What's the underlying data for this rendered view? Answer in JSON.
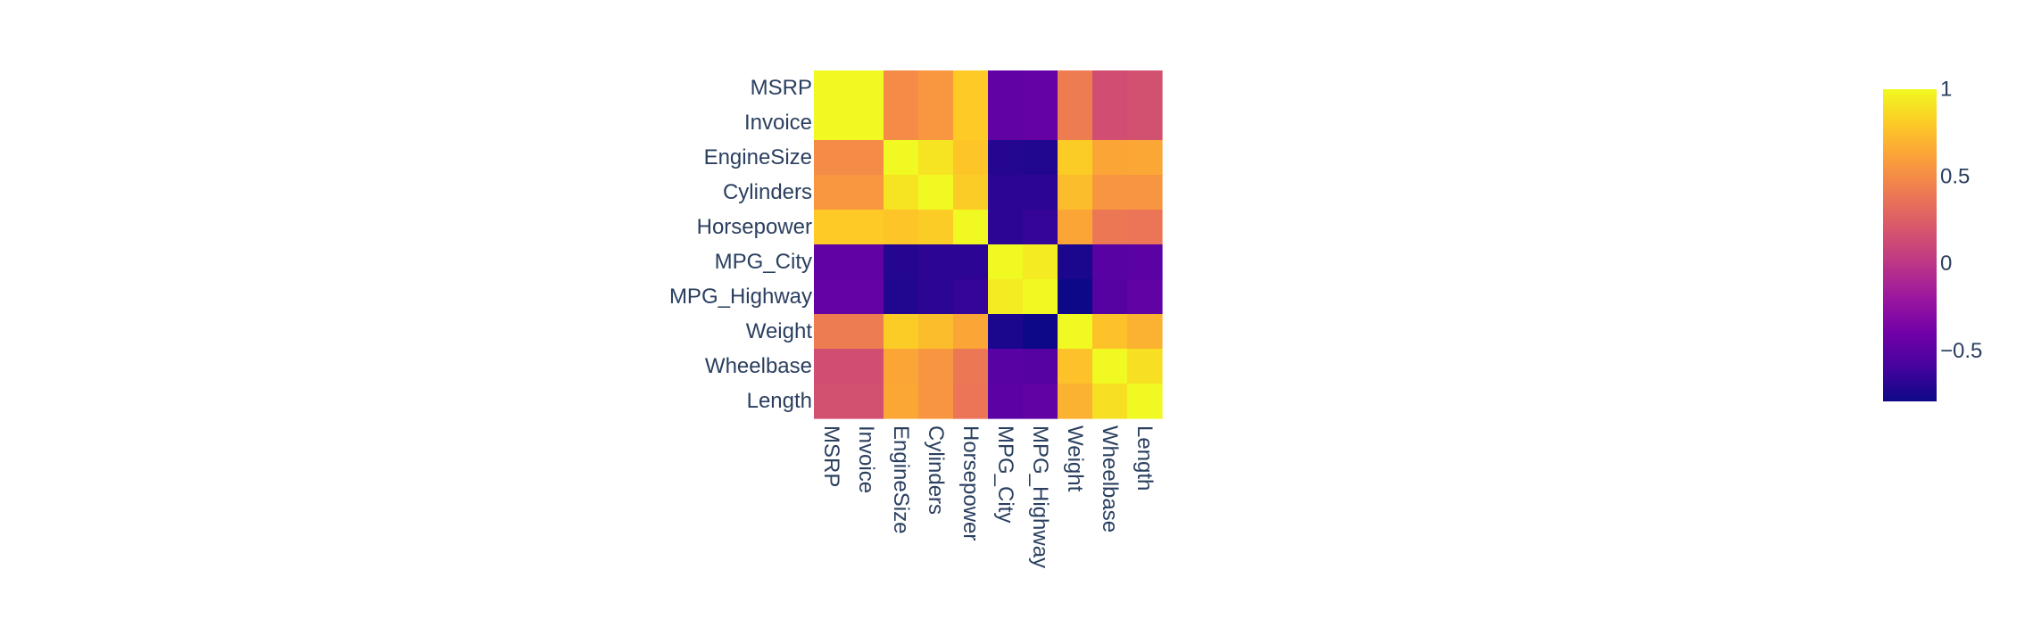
{
  "chart_data": {
    "type": "heatmap",
    "categories": [
      "MSRP",
      "Invoice",
      "EngineSize",
      "Cylinders",
      "Horsepower",
      "MPG_City",
      "MPG_Highway",
      "Weight",
      "Wheelbase",
      "Length"
    ],
    "values": [
      [
        1.0,
        1.0,
        0.5,
        0.56,
        0.8,
        -0.47,
        -0.45,
        0.42,
        0.15,
        0.17
      ],
      [
        1.0,
        1.0,
        0.5,
        0.56,
        0.8,
        -0.47,
        -0.45,
        0.42,
        0.15,
        0.17
      ],
      [
        0.5,
        0.5,
        1.0,
        0.91,
        0.78,
        -0.71,
        -0.72,
        0.81,
        0.63,
        0.64
      ],
      [
        0.56,
        0.56,
        0.91,
        1.0,
        0.81,
        -0.68,
        -0.68,
        0.74,
        0.55,
        0.55
      ],
      [
        0.8,
        0.8,
        0.78,
        0.81,
        1.0,
        -0.68,
        -0.65,
        0.63,
        0.39,
        0.38
      ],
      [
        -0.47,
        -0.47,
        -0.71,
        -0.68,
        -0.68,
        1.0,
        0.94,
        -0.74,
        -0.51,
        -0.5
      ],
      [
        -0.45,
        -0.45,
        -0.72,
        -0.68,
        -0.65,
        0.94,
        1.0,
        -0.79,
        -0.52,
        -0.47
      ],
      [
        0.42,
        0.42,
        0.81,
        0.74,
        0.63,
        -0.74,
        -0.79,
        1.0,
        0.76,
        0.69
      ],
      [
        0.15,
        0.15,
        0.63,
        0.55,
        0.39,
        -0.51,
        -0.52,
        0.76,
        1.0,
        0.89
      ],
      [
        0.17,
        0.17,
        0.64,
        0.55,
        0.38,
        -0.5,
        -0.47,
        0.69,
        0.89,
        1.0
      ]
    ],
    "zlim": [
      -0.79,
      1.0
    ],
    "colorscale": [
      "#0d0887",
      "#46039f",
      "#7201a8",
      "#9c179e",
      "#bd3786",
      "#d8576b",
      "#ed7953",
      "#fb9f3a",
      "#fdca26",
      "#f0f921"
    ],
    "colorbar": {
      "ticks": [
        1,
        0.5,
        0,
        -0.5
      ],
      "tick_labels": [
        "1",
        "0.5",
        "0",
        "−0.5"
      ]
    }
  }
}
